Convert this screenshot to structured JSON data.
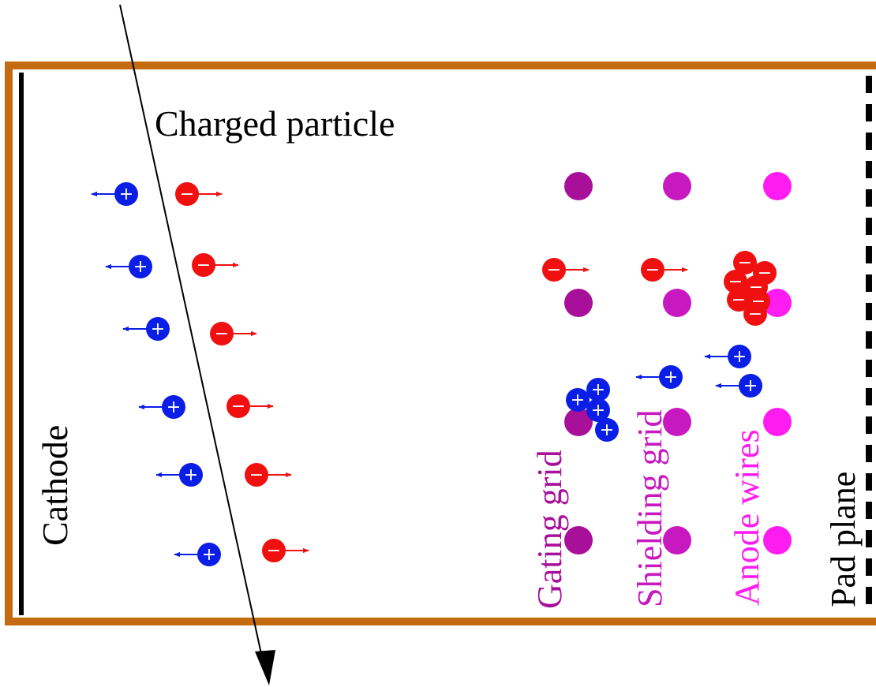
{
  "labels": {
    "particle": "Charged particle",
    "cathode": "Cathode",
    "gating": "Gating grid",
    "shielding": "Shielding grid",
    "anode": "Anode wires",
    "pad": "Pad plane"
  },
  "symbols": {
    "positive": "+",
    "negative": "−"
  },
  "colors": {
    "frame": "#c46a10",
    "cathode": "#000000",
    "pad_plane": "#000000",
    "particle_track": "#000000",
    "ion": "#0a1ee6",
    "electron": "#f01010",
    "gating": "#a8109a",
    "shielding": "#c818c0",
    "anode": "#ff1cf0"
  }
}
